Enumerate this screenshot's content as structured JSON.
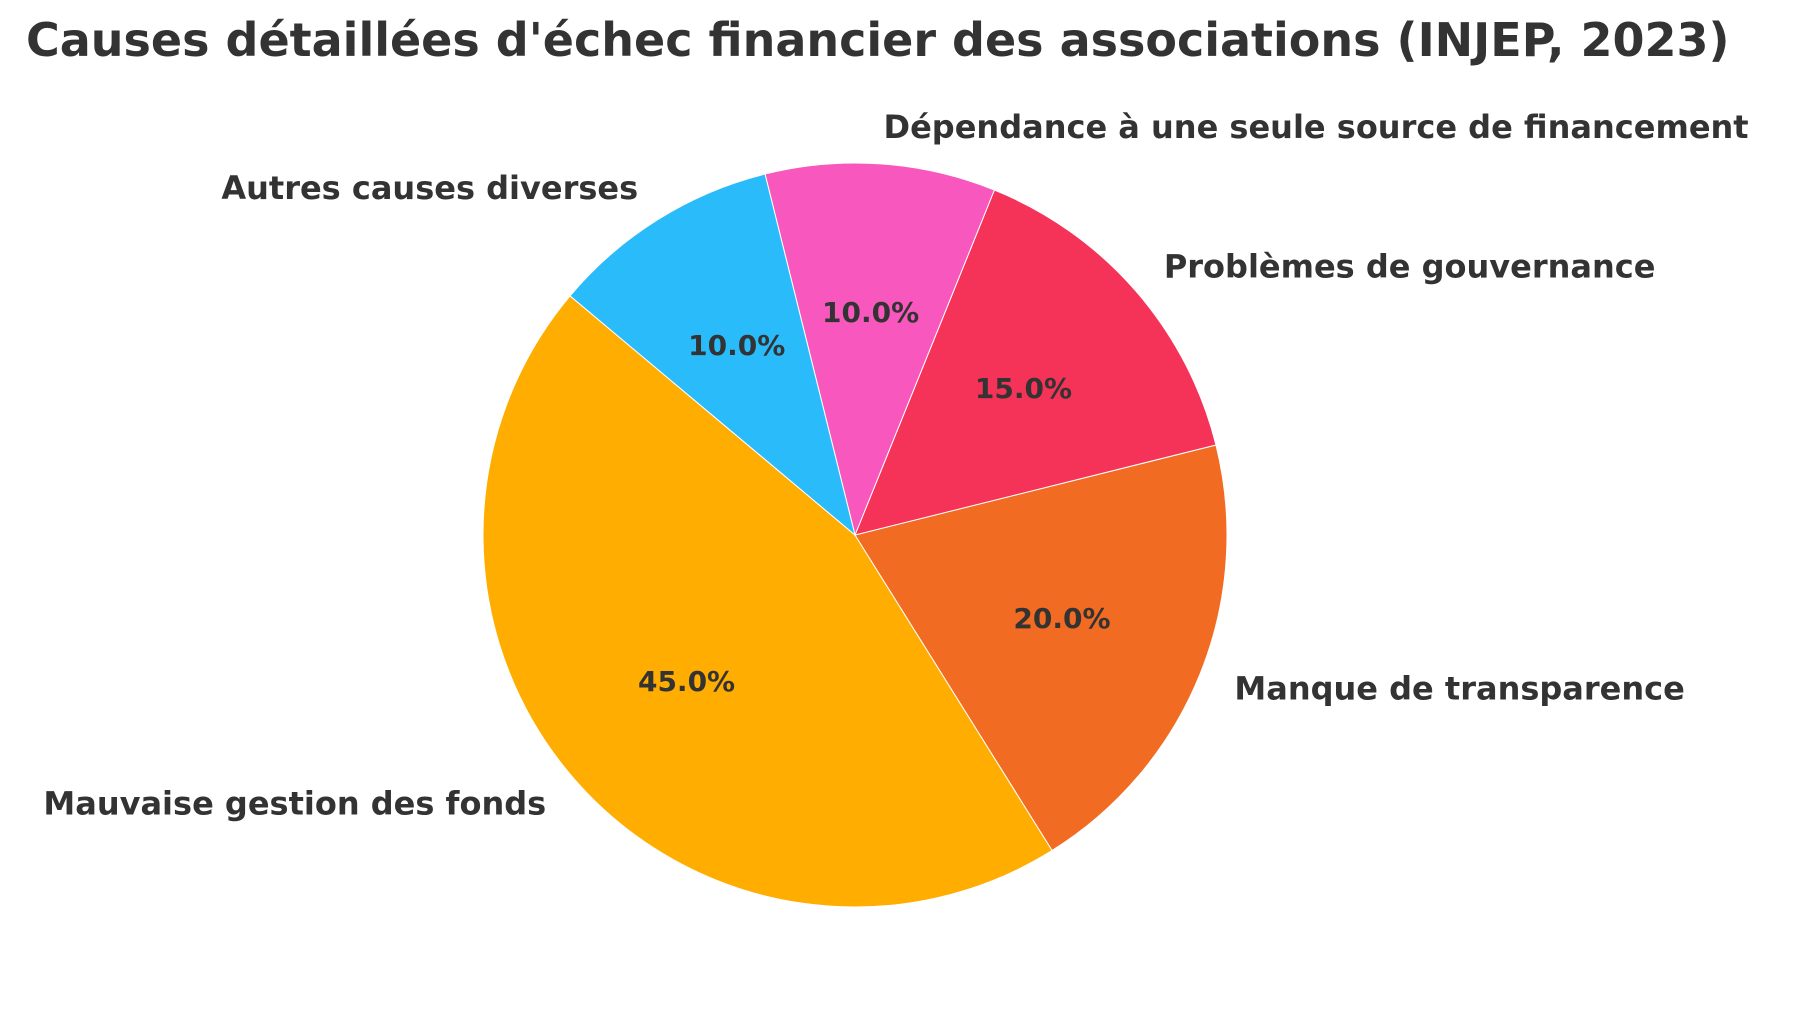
{
  "chart_data": {
    "type": "pie",
    "title": "Causes détaillées d'échec financier des associations (INJEP, 2023)",
    "categories": [
      "Mauvaise gestion des fonds",
      "Manque de transparence",
      "Problèmes de gouvernance",
      "Dépendance à une seule source de financement",
      "Autres causes diverses"
    ],
    "values": [
      45.0,
      20.0,
      15.0,
      10.0,
      10.0
    ],
    "value_labels": [
      "45.0%",
      "20.0%",
      "15.0%",
      "10.0%",
      "10.0%"
    ],
    "colors": [
      "#FFAD00",
      "#F26B22",
      "#F53257",
      "#F857BE",
      "#2ABCFA"
    ],
    "start_angle_deg": 140,
    "direction": "counterclockwise",
    "legend": "none"
  }
}
